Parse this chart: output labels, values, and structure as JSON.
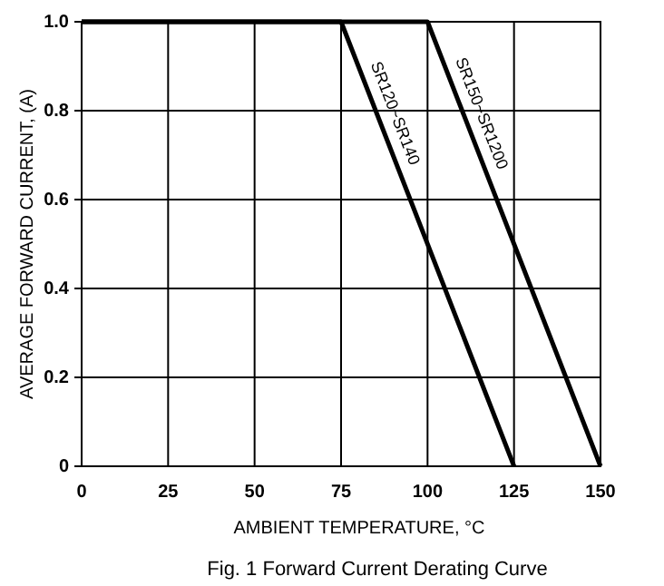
{
  "chart_data": {
    "type": "line",
    "title": "Fig. 1  Forward Current Derating Curve",
    "xlabel": "AMBIENT TEMPERATURE, °C",
    "ylabel": "AVERAGE FORWARD CURRENT, (A)",
    "series": [
      {
        "name": "SR120~SR140",
        "color": "#000000",
        "x": [
          0,
          75,
          125
        ],
        "values": [
          1,
          1,
          0
        ]
      },
      {
        "name": "SR150~SR1200",
        "color": "#000000",
        "x": [
          0,
          100,
          150
        ],
        "values": [
          1,
          1,
          0
        ]
      }
    ],
    "xlim": [
      0,
      150
    ],
    "xticks": [
      0,
      25,
      50,
      75,
      100,
      125,
      150
    ],
    "ylim": [
      0,
      1
    ],
    "yticks": [
      0,
      {
        "value": 0.2,
        "label": "0.2"
      },
      {
        "value": 0.4,
        "label": "0.4"
      },
      {
        "value": 0.6,
        "label": "0.6"
      },
      {
        "value": 0.8,
        "label": "0.8"
      },
      {
        "value": 1,
        "label": "1.0"
      }
    ],
    "grid": true,
    "legend": false,
    "marker": "none",
    "line_style": "solid"
  }
}
